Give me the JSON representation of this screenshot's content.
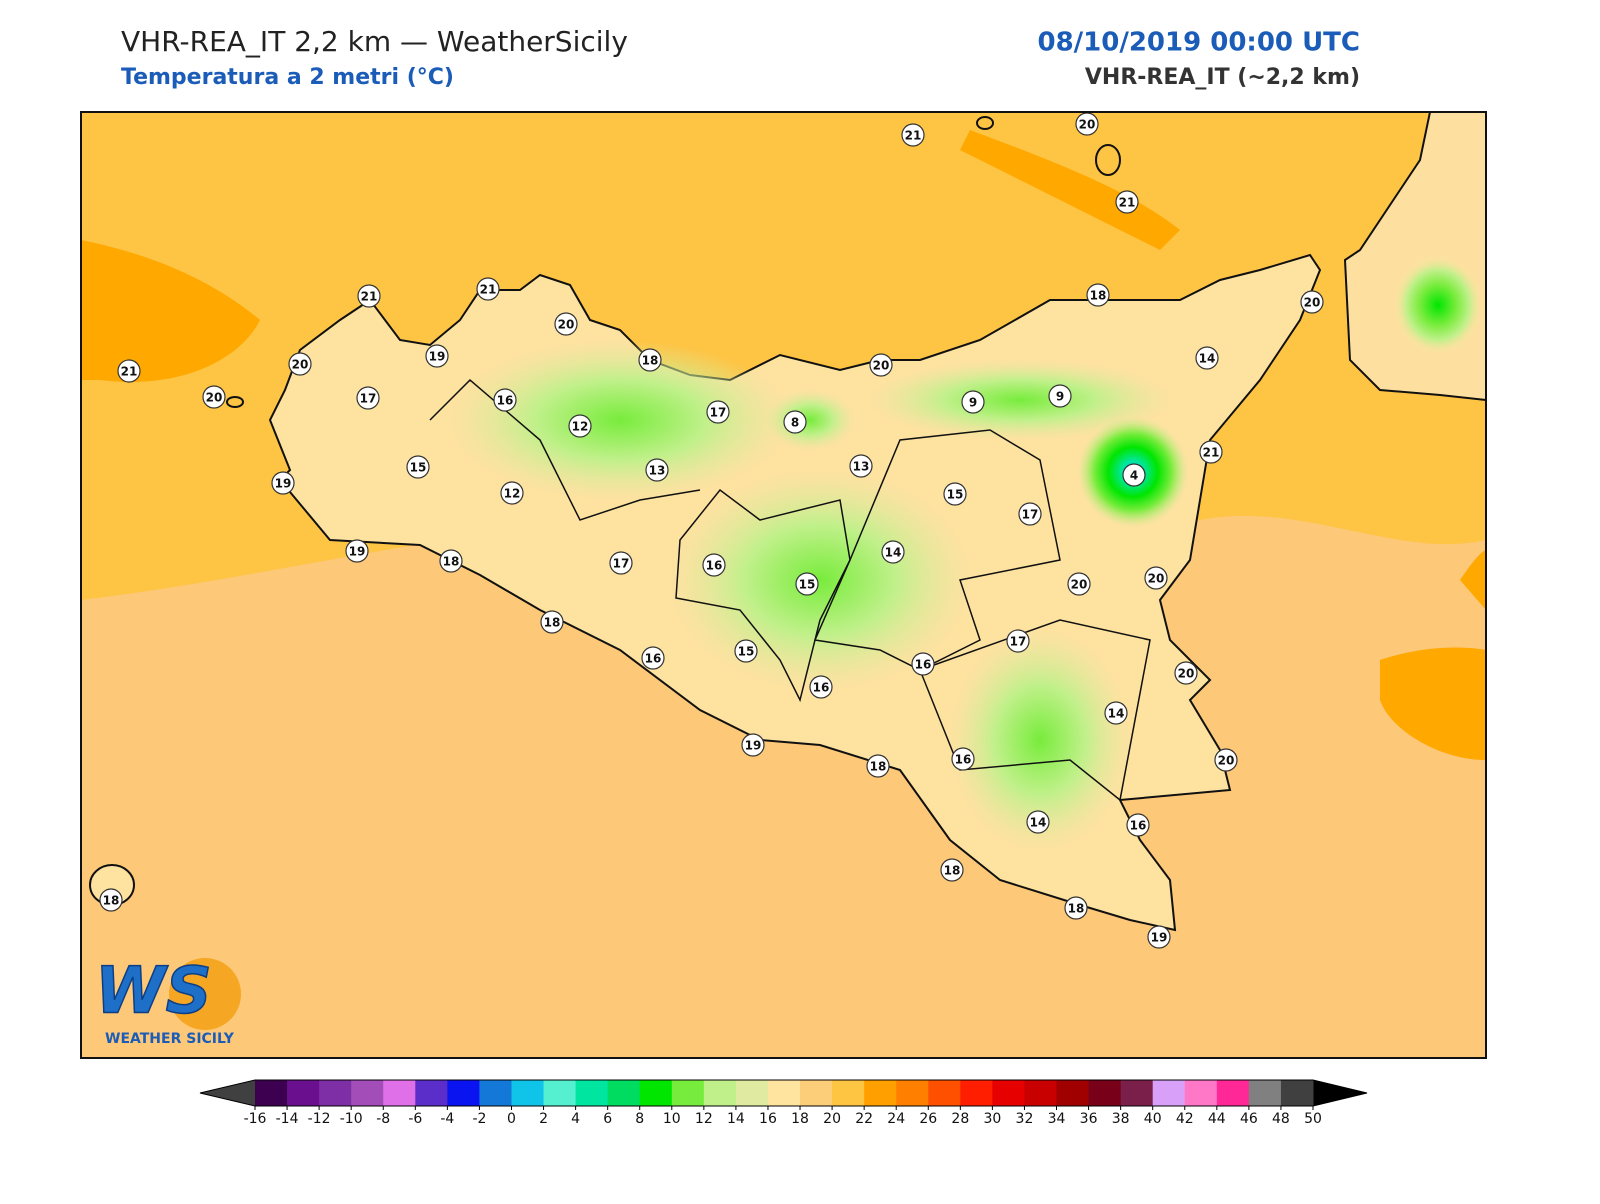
{
  "header": {
    "title": "VHR-REA_IT 2,2 km — WeatherSicily",
    "subtitle": "Temperatura a 2 metri (°C)",
    "date": "08/10/2019 00:00 UTC",
    "model": "VHR-REA_IT (~2,2 km)"
  },
  "logo": {
    "mark": "WS",
    "name": "WEATHER SICILY"
  },
  "stations": [
    21,
    20,
    21,
    21,
    21,
    20,
    18,
    20,
    21,
    20,
    20,
    19,
    18,
    20,
    14,
    17,
    16,
    12,
    17,
    8,
    9,
    9,
    15,
    13,
    13,
    4,
    21,
    19,
    12,
    15,
    17,
    19,
    18,
    17,
    16,
    14,
    15,
    20,
    20,
    18,
    17,
    16,
    15,
    16,
    16,
    20,
    14,
    19,
    18,
    16,
    20,
    14,
    16,
    18,
    18,
    19,
    18
  ],
  "colorbar": {
    "ticks": [
      -16,
      -14,
      -12,
      -10,
      -8,
      -6,
      -4,
      -2,
      0,
      2,
      4,
      6,
      8,
      10,
      12,
      14,
      16,
      18,
      20,
      22,
      24,
      26,
      28,
      30,
      32,
      34,
      36,
      38,
      40,
      42,
      44,
      46,
      48,
      50
    ],
    "colors": [
      "#3d0050",
      "#6a0f8e",
      "#7e2fa6",
      "#a34db8",
      "#e070e8",
      "#5b2ec9",
      "#0a14f0",
      "#1478d8",
      "#0fc4e8",
      "#55f0d0",
      "#00e6a0",
      "#00dc60",
      "#00e600",
      "#78ec3c",
      "#c0f08a",
      "#e0eaa0",
      "#ffe4a0",
      "#fdce7a",
      "#fec542",
      "#ffa000",
      "#ff8000",
      "#ff5000",
      "#ff1e00",
      "#e60000",
      "#c80000",
      "#a00000",
      "#780018",
      "#7a1f4a",
      "#d8a0f8",
      "#ff78c8",
      "#ff2896",
      "#808080",
      "#404040"
    ],
    "under": "#404040",
    "over": "#000000"
  }
}
